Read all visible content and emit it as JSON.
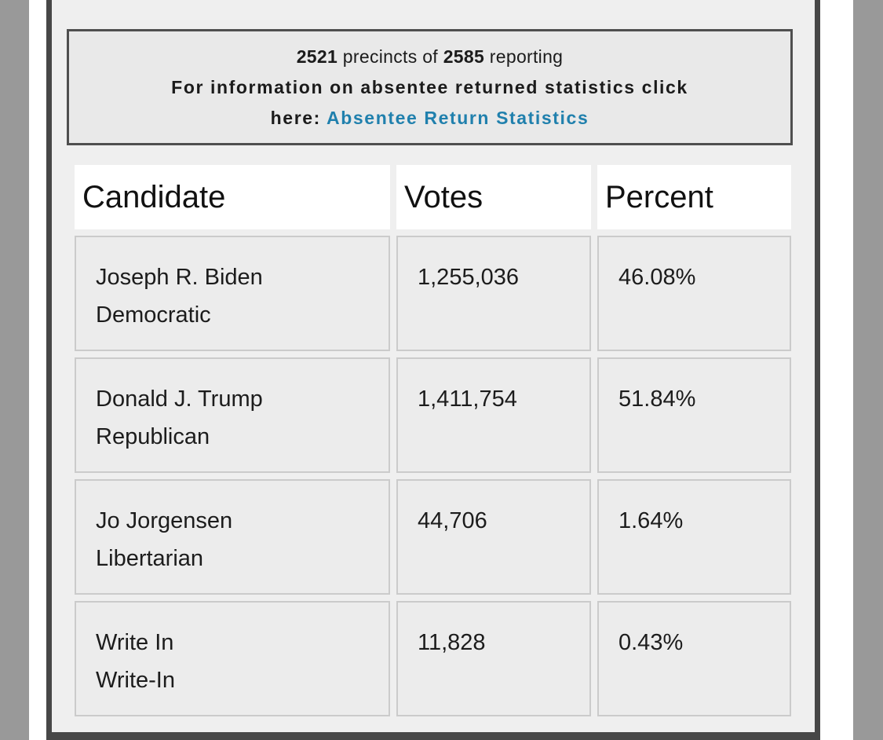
{
  "summary_box": {
    "precincts_reported": "2521",
    "precincts_of_text": "precincts of",
    "precincts_total": "2585",
    "reporting_text": "reporting",
    "info_text": "For information on absentee returned statistics click",
    "here_text": "here:",
    "link_label": "Absentee Return Statistics",
    "link_color": "#2080ad"
  },
  "results_table": {
    "columns": [
      "Candidate",
      "Votes",
      "Percent"
    ],
    "rows": [
      {
        "candidate": "Joseph R. Biden",
        "party": "Democratic",
        "votes": "1,255,036",
        "percent": "46.08%"
      },
      {
        "candidate": "Donald J. Trump",
        "party": "Republican",
        "votes": "1,411,754",
        "percent": "51.84%"
      },
      {
        "candidate": "Jo Jorgensen",
        "party": "Libertarian",
        "votes": "44,706",
        "percent": "1.64%"
      },
      {
        "candidate": "Write In",
        "party": "Write-In",
        "votes": "11,828",
        "percent": "0.43%"
      }
    ]
  }
}
